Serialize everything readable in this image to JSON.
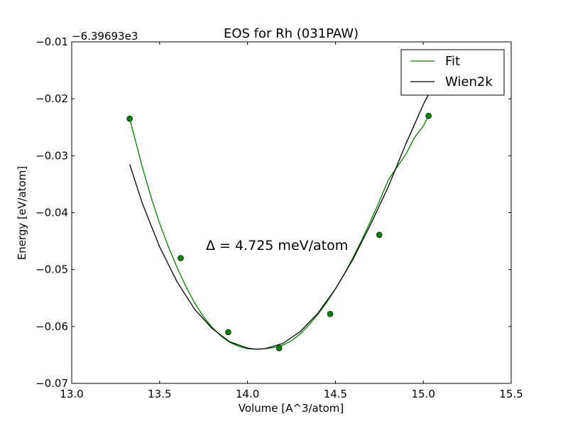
{
  "chart_data": {
    "type": "line",
    "title": "EOS for Rh (031PAW)",
    "xlabel": "Volume [A^3/atom]",
    "ylabel": "Energy [eV/atom]",
    "y_offset_label": "−6.39693e3",
    "xlim": [
      13.0,
      15.5
    ],
    "ylim": [
      -0.07,
      -0.01
    ],
    "x_ticks": [
      13.0,
      13.5,
      14.0,
      14.5,
      15.0,
      15.5
    ],
    "x_tick_labels": [
      "13.0",
      "13.5",
      "14.0",
      "14.5",
      "15.0",
      "15.5"
    ],
    "y_ticks": [
      -0.07,
      -0.06,
      -0.05,
      -0.04,
      -0.03,
      -0.02,
      -0.01
    ],
    "y_tick_labels": [
      "−0.07",
      "−0.06",
      "−0.05",
      "−0.04",
      "−0.03",
      "−0.02",
      "−0.01"
    ],
    "grid": false,
    "legend_position": "top-right",
    "annotation": "Δ = 4.725 meV/atom",
    "series": [
      {
        "name": "Fit",
        "color": "#008000",
        "style": "line",
        "x": [
          13.33,
          13.4,
          13.45,
          13.5,
          13.55,
          13.6,
          13.65,
          13.7,
          13.75,
          13.8,
          13.85,
          13.9,
          13.95,
          14.0,
          14.05,
          14.1,
          14.15,
          14.2,
          14.25,
          14.3,
          14.35,
          14.4,
          14.45,
          14.5,
          14.55,
          14.6,
          14.65,
          14.7,
          14.75,
          14.8,
          14.85,
          14.9,
          14.95,
          15.0,
          15.03
        ],
        "y": [
          -0.0235,
          -0.0318,
          -0.0371,
          -0.0419,
          -0.046,
          -0.0497,
          -0.053,
          -0.0559,
          -0.0583,
          -0.0602,
          -0.0617,
          -0.0628,
          -0.0635,
          -0.0639,
          -0.064,
          -0.0639,
          -0.0637,
          -0.0633,
          -0.0625,
          -0.0613,
          -0.0597,
          -0.0579,
          -0.0558,
          -0.0534,
          -0.0508,
          -0.0479,
          -0.0448,
          -0.0415,
          -0.038,
          -0.0343,
          -0.032,
          -0.0298,
          -0.0268,
          -0.0248,
          -0.023
        ]
      },
      {
        "name": "Wien2k",
        "color": "#000000",
        "style": "line",
        "x": [
          13.33,
          13.4,
          13.5,
          13.6,
          13.7,
          13.8,
          13.9,
          14.0,
          14.05,
          14.1,
          14.2,
          14.3,
          14.4,
          14.5,
          14.6,
          14.7,
          14.8,
          14.9,
          15.0,
          15.05,
          15.08
        ],
        "y": [
          -0.0315,
          -0.0382,
          -0.046,
          -0.0522,
          -0.057,
          -0.0604,
          -0.0627,
          -0.0638,
          -0.064,
          -0.0639,
          -0.063,
          -0.0609,
          -0.0577,
          -0.0534,
          -0.0482,
          -0.0421,
          -0.0355,
          -0.028,
          -0.021,
          -0.018,
          -0.0155
        ]
      },
      {
        "name": "",
        "color": "#008000",
        "style": "markers",
        "x": [
          13.33,
          13.62,
          13.89,
          14.18,
          14.47,
          14.75,
          15.03
        ],
        "y": [
          -0.0235,
          -0.048,
          -0.061,
          -0.0638,
          -0.0578,
          -0.0439,
          -0.023
        ]
      }
    ]
  }
}
